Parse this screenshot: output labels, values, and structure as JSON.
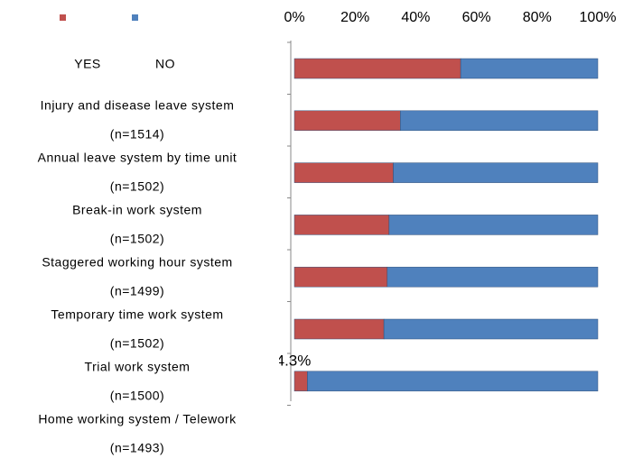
{
  "chart_data": {
    "type": "stacked_bar_horizontal",
    "categories": [
      "Injury and disease leave system",
      "Annual leave system by time unit",
      "Break-in work system",
      "Staggered working hour system",
      "Temporary time work system",
      "Trial work system",
      "Home working system / Telework"
    ],
    "category_n": [
      "(n=1514)",
      "(n=1502)",
      "(n=1502)",
      "(n=1499)",
      "(n=1502)",
      "(n=1500)",
      "(n=1493)"
    ],
    "series": [
      {
        "name": "YES",
        "color": "#c0504d",
        "values": [
          54.8,
          34.9,
          32.6,
          31.2,
          30.6,
          29.5,
          4.3
        ],
        "value_labels": [
          "54.8%",
          "34.9%",
          "32.6%",
          "31.2%",
          "30.6%",
          "29.5%",
          "4.3%"
        ]
      },
      {
        "name": "NO",
        "color": "#4f81bd",
        "values": [
          45.2,
          65.1,
          67.4,
          68.8,
          69.4,
          70.5,
          95.7
        ],
        "value_labels": [
          "45.2%",
          "65.1%",
          "67.4%",
          "68.8%",
          "69.4%",
          "70.5%",
          "95.7%"
        ]
      }
    ],
    "xlim": [
      0,
      100
    ],
    "xticks": [
      {
        "value": 0,
        "label": "0%"
      },
      {
        "value": 20,
        "label": "20%"
      },
      {
        "value": 40,
        "label": "40%"
      },
      {
        "value": 60,
        "label": "60%"
      },
      {
        "value": 80,
        "label": "80%"
      },
      {
        "value": 100,
        "label": "100%"
      }
    ]
  }
}
